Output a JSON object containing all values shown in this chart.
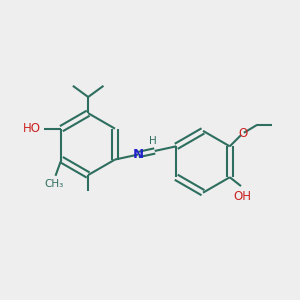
{
  "bg_color": "#eeeeee",
  "bond_color": "#2d6e5e",
  "n_color": "#2222cc",
  "o_color": "#cc2222",
  "line_width": 1.5,
  "font_size": 8.5,
  "fig_size": [
    3.0,
    3.0
  ],
  "dpi": 100,
  "xlim": [
    0,
    10
  ],
  "ylim": [
    0,
    10
  ]
}
